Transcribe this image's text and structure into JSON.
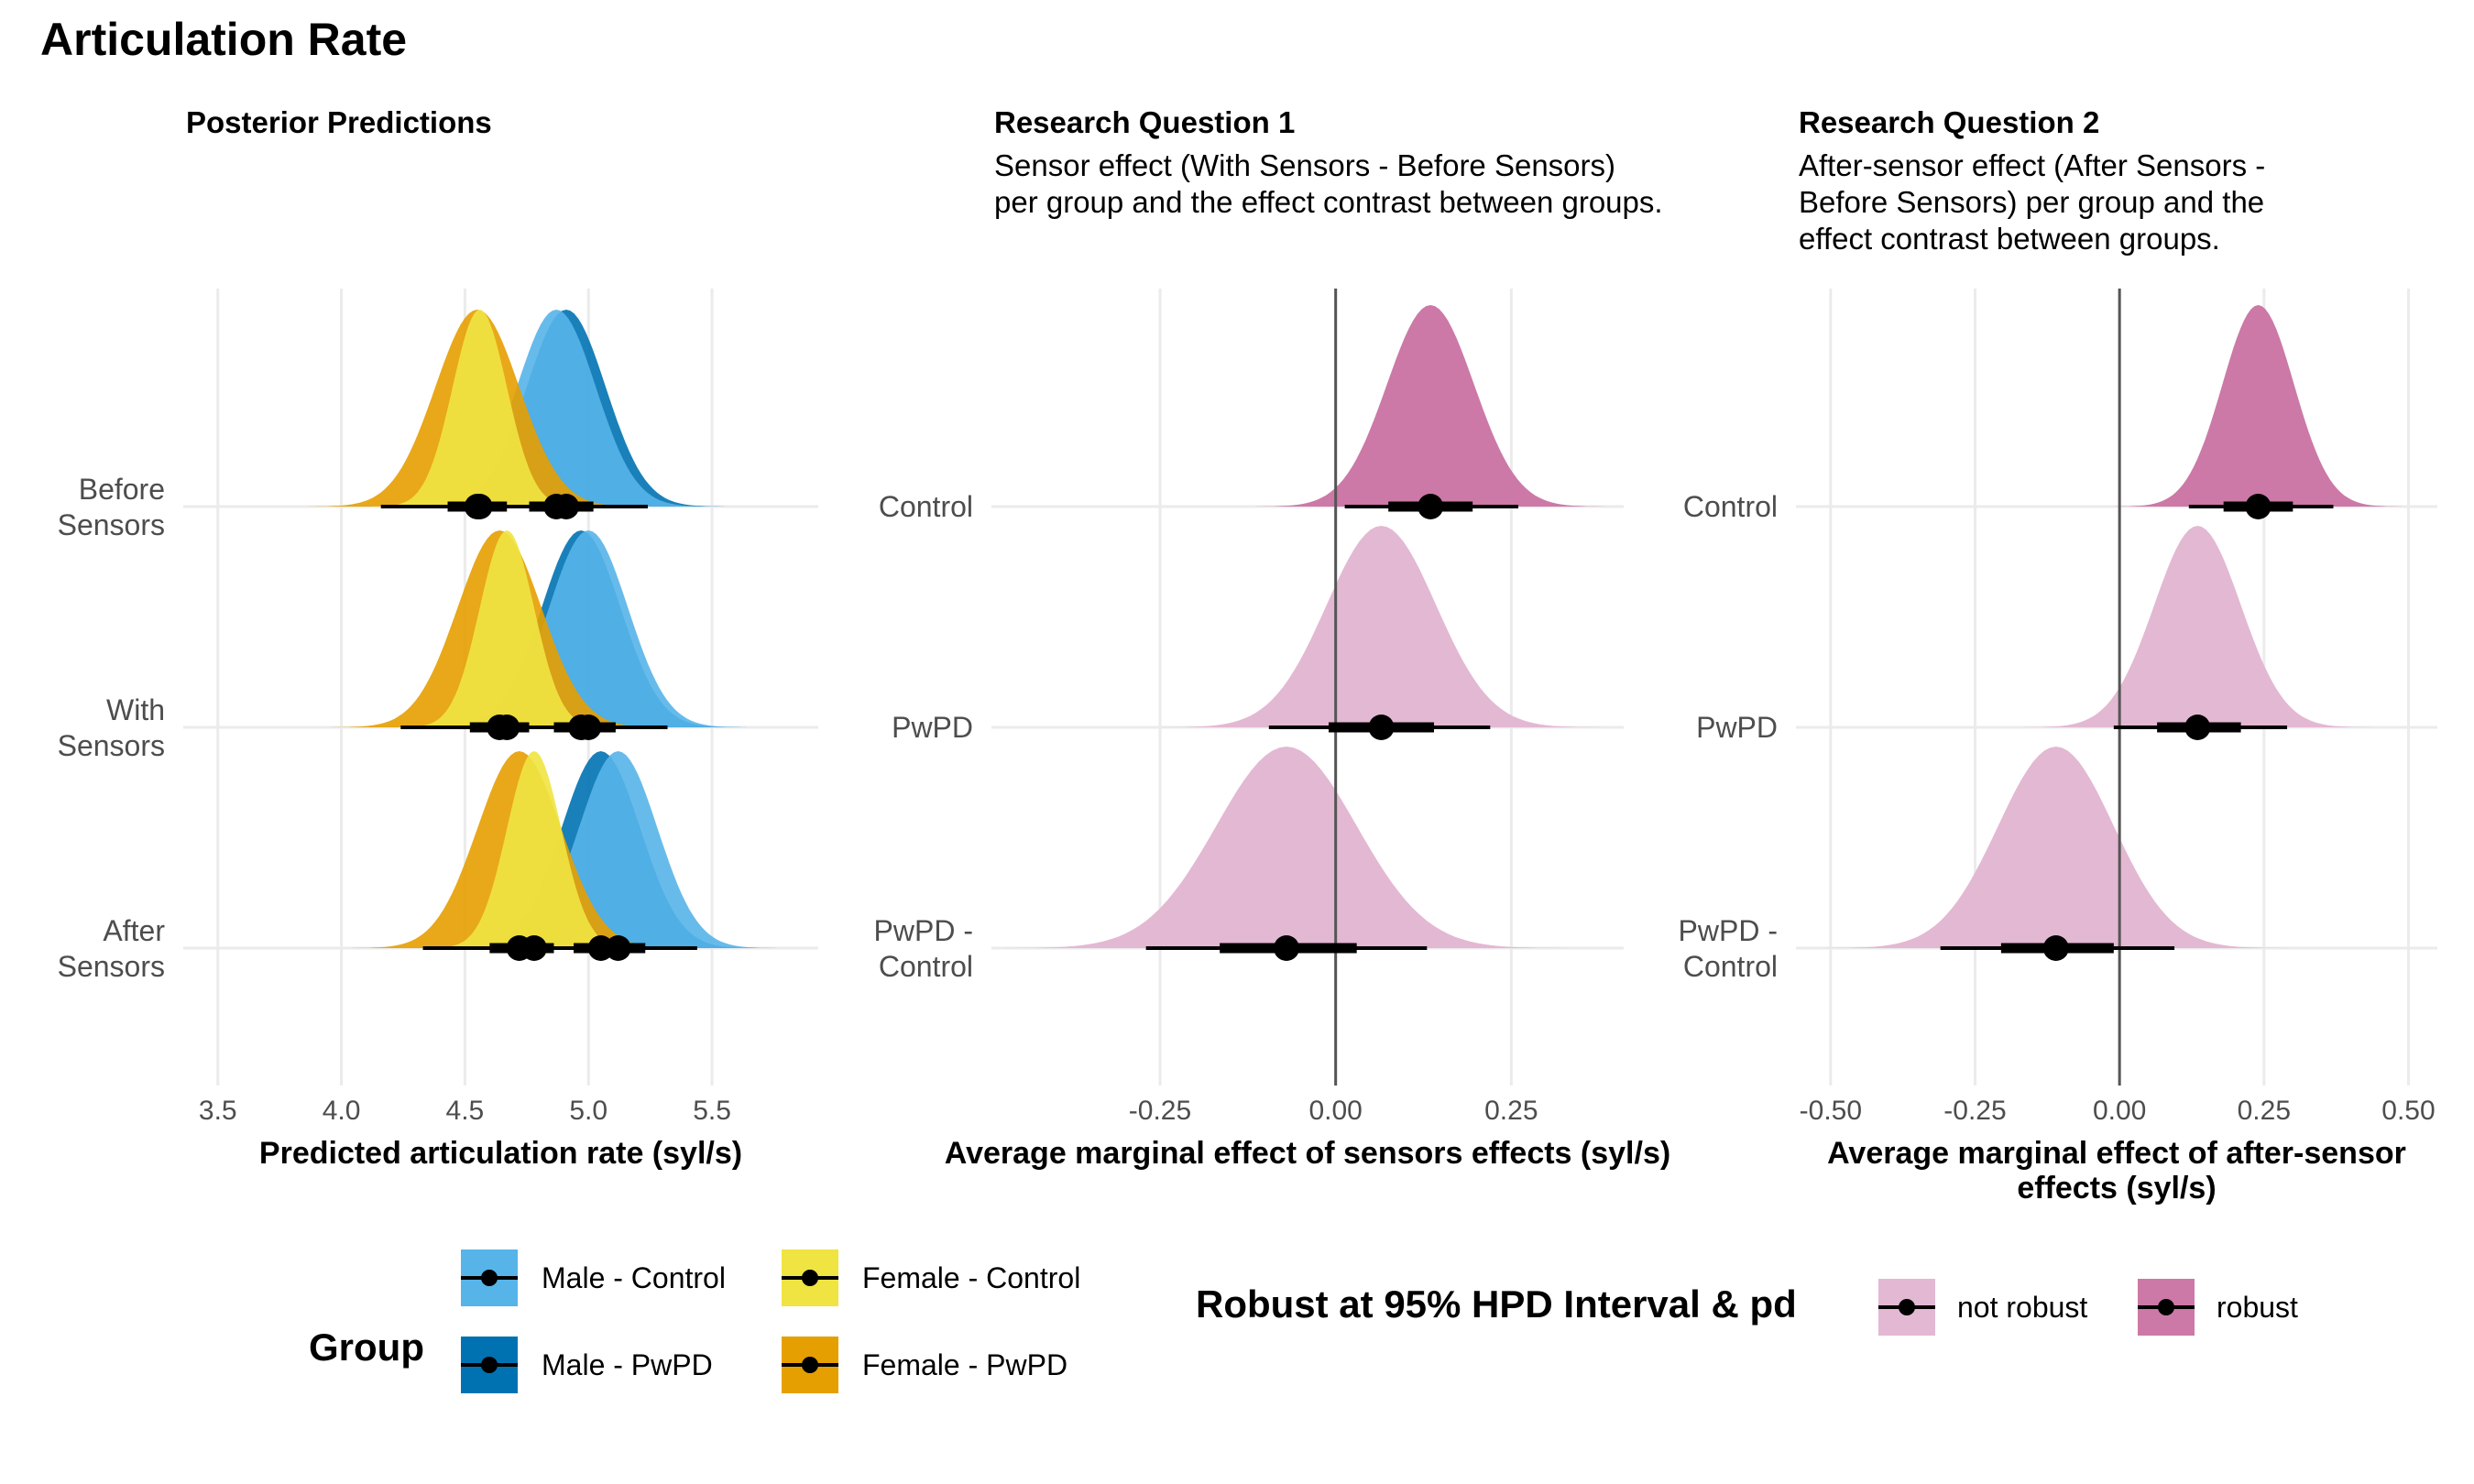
{
  "title": "Articulation Rate",
  "colors": {
    "male_control": "#56B4E9",
    "male_pwpd": "#0072B2",
    "female_control": "#F0E442",
    "female_pwpd": "#E69F00",
    "robust": "#CC79A7",
    "not_robust": "#E3B8D3"
  },
  "panels": {
    "p1": {
      "title": "Posterior Predictions",
      "subtitle": [],
      "xlabel": [
        "Predicted articulation rate (syl/s)"
      ]
    },
    "p2": {
      "title": "Research Question 1",
      "subtitle": [
        "Sensor effect (With Sensors - Before Sensors)",
        "per group and the effect contrast between groups."
      ],
      "xlabel": [
        "Average marginal effect of sensors effects (syl/s)"
      ]
    },
    "p3": {
      "title": "Research Question 2",
      "subtitle": [
        "After-sensor effect (After Sensors -",
        "Before Sensors) per group and the",
        "effect contrast between groups."
      ],
      "xlabel": [
        "Average marginal effect of after-sensor",
        "effects (syl/s)"
      ]
    }
  },
  "legend": {
    "group_title": "Group",
    "group_items": [
      "Male - Control",
      "Male - PwPD",
      "Female - Control",
      "Female - PwPD"
    ],
    "robust_title": "Robust at 95% HPD Interval & pd",
    "robust_items": [
      "not robust",
      "robust"
    ]
  },
  "chart_data": [
    {
      "type": "density",
      "title": "Posterior Predictions",
      "xlabel": "Predicted articulation rate (syl/s)",
      "xlim": [
        3.36,
        5.93
      ],
      "x_ticks": [
        3.5,
        4.0,
        4.5,
        5.0,
        5.5
      ],
      "x_tick_labels": [
        "3.5",
        "4.0",
        "4.5",
        "5.0",
        "5.5"
      ],
      "y_categories": [
        [
          "Before",
          "Sensors"
        ],
        [
          "With",
          "Sensors"
        ],
        [
          "After",
          "Sensors"
        ]
      ],
      "grid": true,
      "series": [
        {
          "name": "Male - PwPD",
          "color_key": "male_pwpd",
          "rows": [
            {
              "mean": 4.91,
              "sd": 0.16,
              "q66": [
                4.8,
                5.02
              ],
              "q95": [
                4.59,
                5.24
              ]
            },
            {
              "mean": 4.97,
              "sd": 0.16,
              "q66": [
                4.86,
                5.08
              ],
              "q95": [
                4.66,
                5.28
              ]
            },
            {
              "mean": 5.05,
              "sd": 0.16,
              "q66": [
                4.94,
                5.16
              ],
              "q95": [
                4.73,
                5.36
              ]
            }
          ]
        },
        {
          "name": "Male - Control",
          "color_key": "male_control",
          "rows": [
            {
              "mean": 4.87,
              "sd": 0.16,
              "q66": [
                4.76,
                4.98
              ],
              "q95": [
                4.55,
                5.18
              ]
            },
            {
              "mean": 5.0,
              "sd": 0.16,
              "q66": [
                4.89,
                5.11
              ],
              "q95": [
                4.68,
                5.32
              ]
            },
            {
              "mean": 5.12,
              "sd": 0.16,
              "q66": [
                5.01,
                5.23
              ],
              "q95": [
                4.8,
                5.44
              ]
            }
          ]
        },
        {
          "name": "Female - PwPD",
          "color_key": "female_pwpd",
          "rows": [
            {
              "mean": 4.55,
              "sd": 0.17,
              "q66": [
                4.43,
                4.67
              ],
              "q95": [
                4.16,
                4.95
              ]
            },
            {
              "mean": 4.64,
              "sd": 0.17,
              "q66": [
                4.52,
                4.76
              ],
              "q95": [
                4.24,
                5.02
              ]
            },
            {
              "mean": 4.72,
              "sd": 0.17,
              "q66": [
                4.6,
                4.84
              ],
              "q95": [
                4.33,
                5.1
              ]
            }
          ]
        },
        {
          "name": "Female - Control",
          "color_key": "female_control",
          "rows": [
            {
              "mean": 4.56,
              "sd": 0.11,
              "q66": [
                4.48,
                4.64
              ],
              "q95": [
                4.33,
                4.79
              ]
            },
            {
              "mean": 4.67,
              "sd": 0.11,
              "q66": [
                4.59,
                4.75
              ],
              "q95": [
                4.45,
                4.89
              ]
            },
            {
              "mean": 4.78,
              "sd": 0.11,
              "q66": [
                4.7,
                4.86
              ],
              "q95": [
                4.56,
                5.01
              ]
            }
          ]
        }
      ]
    },
    {
      "type": "density",
      "title": "Research Question 1",
      "xlabel": "Average marginal effect of sensors effects (syl/s)",
      "xlim": [
        -0.49,
        0.41
      ],
      "x_ticks": [
        -0.25,
        0.0,
        0.25
      ],
      "x_tick_labels": [
        "-0.25",
        "0.00",
        "0.25"
      ],
      "y_categories": [
        [
          "Control"
        ],
        [
          "PwPD"
        ],
        [
          "PwPD -",
          "Control"
        ]
      ],
      "reference_line": 0,
      "grid": true,
      "rows": [
        {
          "mean": 0.135,
          "sd": 0.062,
          "q66": [
            0.075,
            0.195
          ],
          "q95": [
            0.013,
            0.26
          ],
          "robust": true
        },
        {
          "mean": 0.065,
          "sd": 0.078,
          "q66": [
            -0.01,
            0.14
          ],
          "q95": [
            -0.095,
            0.22
          ],
          "robust": false
        },
        {
          "mean": -0.07,
          "sd": 0.1,
          "q66": [
            -0.165,
            0.03
          ],
          "q95": [
            -0.27,
            0.13
          ],
          "robust": false
        }
      ]
    },
    {
      "type": "density",
      "title": "Research Question 2",
      "xlabel": "Average marginal effect of after-sensor effects (syl/s)",
      "xlim": [
        -0.56,
        0.55
      ],
      "x_ticks": [
        -0.5,
        -0.25,
        0.0,
        0.25,
        0.5
      ],
      "x_tick_labels": [
        "-0.50",
        "-0.25",
        "0.00",
        "0.25",
        "0.50"
      ],
      "y_categories": [
        [
          "Control"
        ],
        [
          "PwPD"
        ],
        [
          "PwPD -",
          "Control"
        ]
      ],
      "reference_line": 0,
      "grid": true,
      "rows": [
        {
          "mean": 0.24,
          "sd": 0.062,
          "q66": [
            0.18,
            0.3
          ],
          "q95": [
            0.12,
            0.37
          ],
          "robust": true
        },
        {
          "mean": 0.135,
          "sd": 0.075,
          "q66": [
            0.065,
            0.21
          ],
          "q95": [
            -0.01,
            0.29
          ],
          "robust": false
        },
        {
          "mean": -0.11,
          "sd": 0.1,
          "q66": [
            -0.205,
            -0.01
          ],
          "q95": [
            -0.31,
            0.095
          ],
          "robust": false
        }
      ]
    }
  ]
}
